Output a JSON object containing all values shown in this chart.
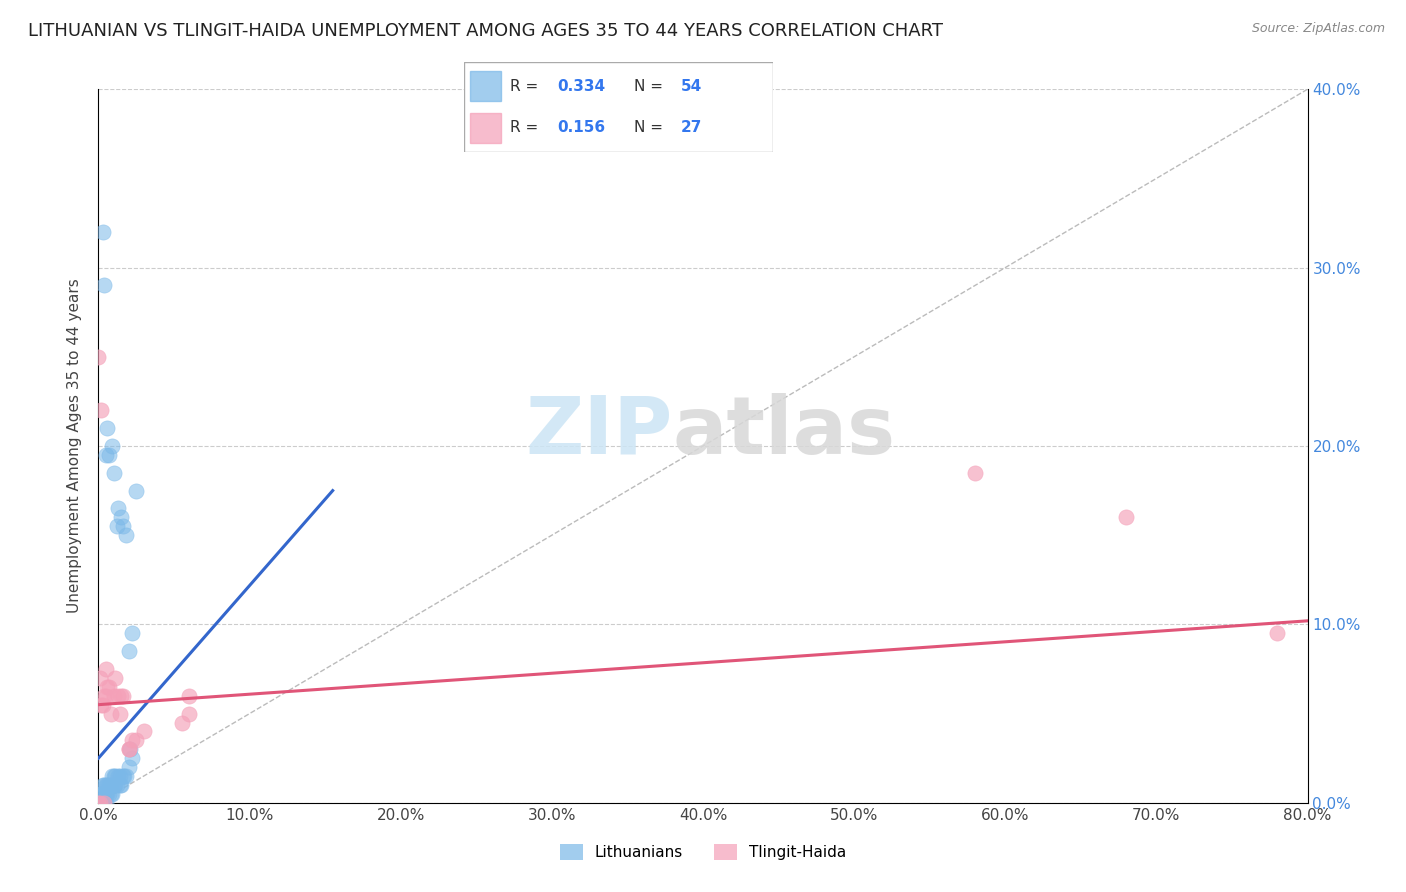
{
  "title": "LITHUANIAN VS TLINGIT-HAIDA UNEMPLOYMENT AMONG AGES 35 TO 44 YEARS CORRELATION CHART",
  "source": "Source: ZipAtlas.com",
  "ylabel": "Unemployment Among Ages 35 to 44 years",
  "xlim": [
    0.0,
    0.8
  ],
  "ylim": [
    0.0,
    0.4
  ],
  "blue_color": "#7bb8e8",
  "pink_color": "#f4a0b8",
  "blue_line_color": "#3366cc",
  "pink_line_color": "#e05578",
  "blue_line_x": [
    0.0,
    0.155
  ],
  "blue_line_y": [
    0.025,
    0.175
  ],
  "pink_line_x": [
    0.0,
    0.8
  ],
  "pink_line_y": [
    0.055,
    0.102
  ],
  "diag_line_color": "#bbbbbb",
  "title_fontsize": 13,
  "axis_fontsize": 11,
  "tick_fontsize": 11,
  "right_tick_color": "#4488dd",
  "blue_scatter": [
    [
      0.0,
      0.0
    ],
    [
      0.0,
      0.0
    ],
    [
      0.001,
      0.0
    ],
    [
      0.001,
      0.005
    ],
    [
      0.002,
      0.0
    ],
    [
      0.002,
      0.005
    ],
    [
      0.003,
      0.0
    ],
    [
      0.003,
      0.005
    ],
    [
      0.003,
      0.01
    ],
    [
      0.004,
      0.0
    ],
    [
      0.004,
      0.005
    ],
    [
      0.004,
      0.01
    ],
    [
      0.005,
      0.0
    ],
    [
      0.005,
      0.005
    ],
    [
      0.005,
      0.01
    ],
    [
      0.006,
      0.005
    ],
    [
      0.006,
      0.01
    ],
    [
      0.007,
      0.005
    ],
    [
      0.007,
      0.01
    ],
    [
      0.008,
      0.005
    ],
    [
      0.008,
      0.01
    ],
    [
      0.009,
      0.005
    ],
    [
      0.009,
      0.015
    ],
    [
      0.01,
      0.01
    ],
    [
      0.01,
      0.015
    ],
    [
      0.011,
      0.01
    ],
    [
      0.011,
      0.015
    ],
    [
      0.012,
      0.01
    ],
    [
      0.013,
      0.015
    ],
    [
      0.014,
      0.01
    ],
    [
      0.014,
      0.015
    ],
    [
      0.015,
      0.01
    ],
    [
      0.016,
      0.015
    ],
    [
      0.017,
      0.015
    ],
    [
      0.018,
      0.015
    ],
    [
      0.02,
      0.02
    ],
    [
      0.021,
      0.03
    ],
    [
      0.022,
      0.025
    ],
    [
      0.025,
      0.175
    ],
    [
      0.003,
      0.32
    ],
    [
      0.004,
      0.29
    ],
    [
      0.005,
      0.195
    ],
    [
      0.006,
      0.21
    ],
    [
      0.007,
      0.195
    ],
    [
      0.009,
      0.2
    ],
    [
      0.01,
      0.185
    ],
    [
      0.012,
      0.155
    ],
    [
      0.013,
      0.165
    ],
    [
      0.015,
      0.16
    ],
    [
      0.016,
      0.155
    ],
    [
      0.018,
      0.15
    ],
    [
      0.02,
      0.085
    ],
    [
      0.022,
      0.095
    ],
    [
      0.0,
      0.0
    ],
    [
      0.001,
      0.0
    ]
  ],
  "pink_scatter": [
    [
      0.0,
      0.0
    ],
    [
      0.001,
      0.0
    ],
    [
      0.001,
      0.07
    ],
    [
      0.002,
      0.055
    ],
    [
      0.003,
      0.055
    ],
    [
      0.004,
      0.0
    ],
    [
      0.004,
      0.06
    ],
    [
      0.005,
      0.06
    ],
    [
      0.005,
      0.075
    ],
    [
      0.006,
      0.065
    ],
    [
      0.007,
      0.065
    ],
    [
      0.008,
      0.05
    ],
    [
      0.01,
      0.06
    ],
    [
      0.011,
      0.07
    ],
    [
      0.013,
      0.06
    ],
    [
      0.014,
      0.05
    ],
    [
      0.015,
      0.06
    ],
    [
      0.016,
      0.06
    ],
    [
      0.02,
      0.03
    ],
    [
      0.02,
      0.03
    ],
    [
      0.022,
      0.035
    ],
    [
      0.025,
      0.035
    ],
    [
      0.03,
      0.04
    ],
    [
      0.055,
      0.045
    ],
    [
      0.06,
      0.06
    ],
    [
      0.06,
      0.05
    ],
    [
      0.0,
      0.25
    ],
    [
      0.002,
      0.22
    ],
    [
      0.58,
      0.185
    ],
    [
      0.68,
      0.16
    ],
    [
      0.78,
      0.095
    ]
  ]
}
